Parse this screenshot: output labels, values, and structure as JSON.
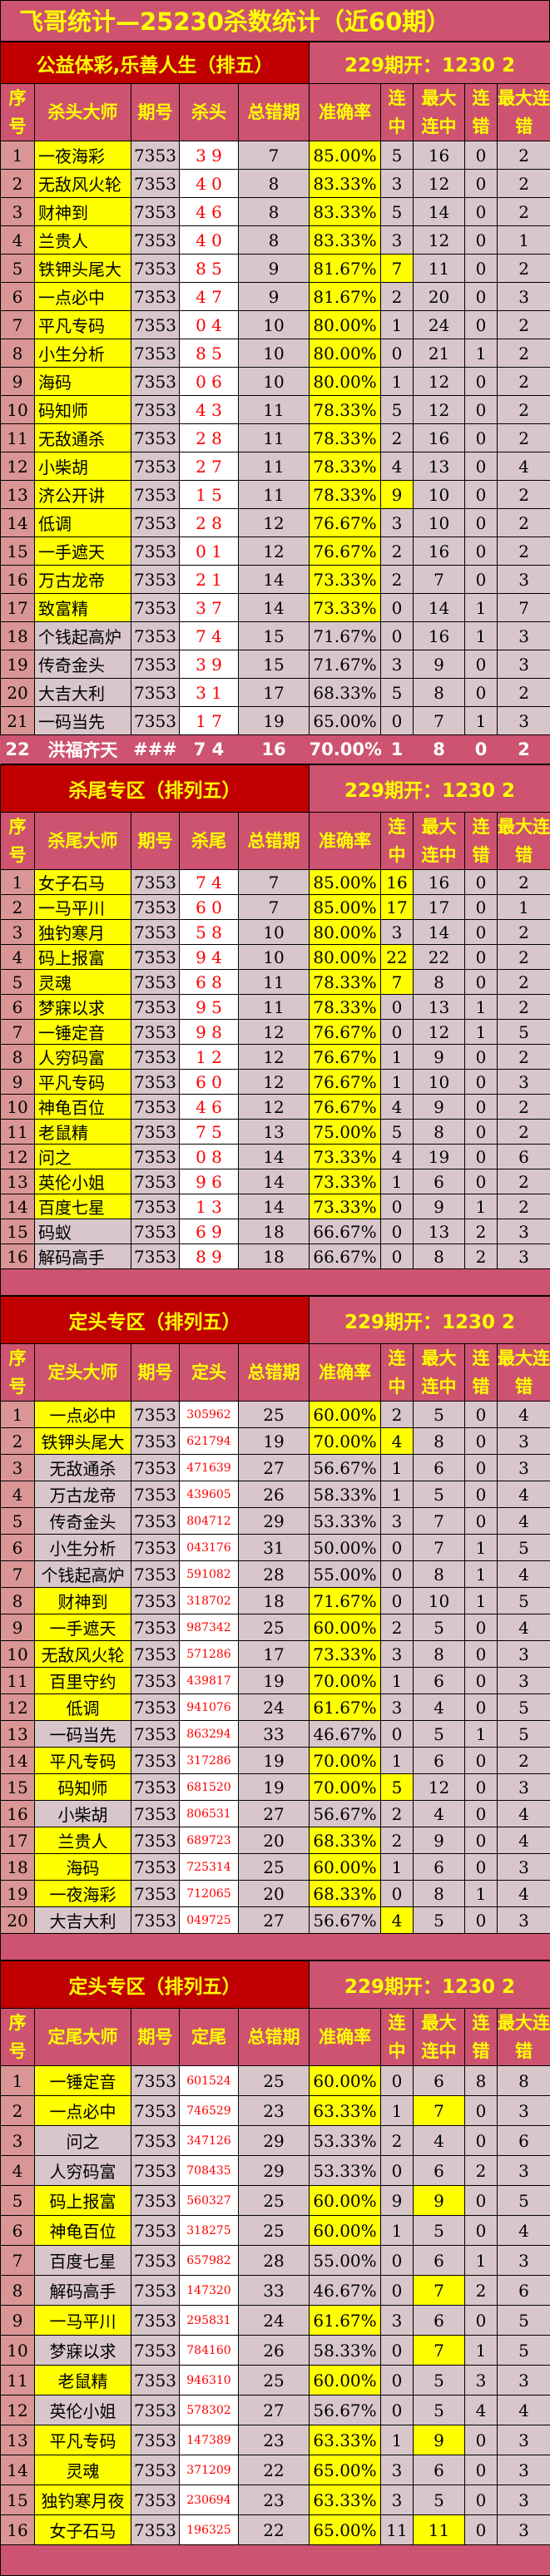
{
  "title": "飞哥统计—25230杀数统计（近60期）",
  "colors": {
    "header_pink": "#cd5370",
    "section_red": "#c00000",
    "highlight_yellow": "#ffff00",
    "cell_grey": "#d8c6cb",
    "number_col": "#da9694",
    "code_red": "#ff0000"
  },
  "sections": [
    {
      "header_left": "公益体彩,乐善人生（排五）",
      "header_right": "229期开：1230 2",
      "columns": [
        "序号",
        "杀头大师",
        "期号",
        "杀头",
        "总错期",
        "准确率",
        "连中",
        "最大连中",
        "连错",
        "最大连错"
      ],
      "highlight_name_rate": [
        1,
        2,
        3,
        4,
        5,
        6,
        7,
        8,
        9,
        10,
        11,
        12,
        13,
        14,
        15,
        16,
        17
      ],
      "highlight_streak": [
        5,
        13
      ],
      "highlight_max_streak": [],
      "rows": [
        [
          "1",
          "一夜海彩",
          "7353",
          "3 9",
          "7",
          "85.00%",
          "5",
          "16",
          "0",
          "2"
        ],
        [
          "2",
          "无敌风火轮",
          "7353",
          "4 0",
          "8",
          "83.33%",
          "3",
          "12",
          "0",
          "2"
        ],
        [
          "3",
          "财神到",
          "7353",
          "4 6",
          "8",
          "83.33%",
          "5",
          "14",
          "0",
          "2"
        ],
        [
          "4",
          "兰贵人",
          "7353",
          "4 0",
          "8",
          "83.33%",
          "3",
          "12",
          "0",
          "1"
        ],
        [
          "5",
          "铁钾头尾大",
          "7353",
          "8 5",
          "9",
          "81.67%",
          "7",
          "11",
          "0",
          "2"
        ],
        [
          "6",
          "一点必中",
          "7353",
          "4 7",
          "9",
          "81.67%",
          "2",
          "20",
          "0",
          "3"
        ],
        [
          "7",
          "平凡专码",
          "7353",
          "0 4",
          "10",
          "80.00%",
          "1",
          "24",
          "0",
          "2"
        ],
        [
          "8",
          "小生分析",
          "7353",
          "8 5",
          "10",
          "80.00%",
          "0",
          "21",
          "1",
          "2"
        ],
        [
          "9",
          "海码",
          "7353",
          "0 6",
          "10",
          "80.00%",
          "1",
          "12",
          "0",
          "2"
        ],
        [
          "10",
          "码知师",
          "7353",
          "4 3",
          "11",
          "78.33%",
          "5",
          "12",
          "0",
          "2"
        ],
        [
          "11",
          "无敌通杀",
          "7353",
          "2 8",
          "11",
          "78.33%",
          "2",
          "16",
          "0",
          "2"
        ],
        [
          "12",
          "小柴胡",
          "7353",
          "2 7",
          "11",
          "78.33%",
          "4",
          "13",
          "0",
          "4"
        ],
        [
          "13",
          "济公开讲",
          "7353",
          "1 5",
          "11",
          "78.33%",
          "9",
          "10",
          "0",
          "2"
        ],
        [
          "14",
          "低调",
          "7353",
          "2 8",
          "12",
          "76.67%",
          "3",
          "10",
          "0",
          "2"
        ],
        [
          "15",
          "一手遮天",
          "7353",
          "0 1",
          "12",
          "76.67%",
          "2",
          "16",
          "0",
          "2"
        ],
        [
          "16",
          "万古龙帝",
          "7353",
          "2 1",
          "14",
          "73.33%",
          "2",
          "7",
          "0",
          "3"
        ],
        [
          "17",
          "致富精",
          "7353",
          "3 7",
          "14",
          "73.33%",
          "0",
          "14",
          "1",
          "7"
        ],
        [
          "18",
          "个钱起高炉",
          "7353",
          "7 4",
          "15",
          "71.67%",
          "0",
          "16",
          "1",
          "3"
        ],
        [
          "19",
          "传奇金头",
          "7353",
          "3 9",
          "15",
          "71.67%",
          "3",
          "9",
          "0",
          "3"
        ],
        [
          "20",
          "大吉大利",
          "7353",
          "3 1",
          "17",
          "68.33%",
          "5",
          "8",
          "0",
          "2"
        ],
        [
          "21",
          "一码当先",
          "7353",
          "1 7",
          "19",
          "65.00%",
          "0",
          "7",
          "1",
          "3"
        ]
      ],
      "footer_row": [
        "22",
        "洪福齐天",
        "###",
        "7 4",
        "16",
        "70.00%",
        "1",
        "8",
        "0",
        "2"
      ]
    },
    {
      "header_left": "杀尾专区（排列五）",
      "header_right": "229期开：1230 2",
      "columns": [
        "序号",
        "杀尾大师",
        "期号",
        "杀尾",
        "总错期",
        "准确率",
        "连中",
        "最大连中",
        "连错",
        "最大连错"
      ],
      "highlight_name_rate": [
        1,
        2,
        3,
        4,
        5,
        6,
        7,
        8,
        9,
        10,
        11,
        12,
        13,
        14
      ],
      "highlight_streak": [
        1,
        2,
        4,
        5
      ],
      "highlight_max_streak": [],
      "rows": [
        [
          "1",
          "女子石马",
          "7353",
          "7 4",
          "7",
          "85.00%",
          "16",
          "16",
          "0",
          "2"
        ],
        [
          "2",
          "一马平川",
          "7353",
          "6 0",
          "7",
          "85.00%",
          "17",
          "17",
          "0",
          "1"
        ],
        [
          "3",
          "独钓寒月",
          "7353",
          "5 8",
          "10",
          "80.00%",
          "3",
          "14",
          "0",
          "2"
        ],
        [
          "4",
          "码上报富",
          "7353",
          "9 4",
          "10",
          "80.00%",
          "22",
          "22",
          "0",
          "2"
        ],
        [
          "5",
          "灵魂",
          "7353",
          "6 8",
          "11",
          "78.33%",
          "7",
          "8",
          "0",
          "2"
        ],
        [
          "6",
          "  梦寐以求",
          "7353",
          "9 5",
          "11",
          "78.33%",
          "0",
          "13",
          "1",
          "2"
        ],
        [
          "7",
          "  一锤定音",
          "7353",
          "9 8",
          "12",
          "76.67%",
          "0",
          "12",
          "1",
          "5"
        ],
        [
          "8",
          "人穷码富",
          "7353",
          "1 2",
          "12",
          "76.67%",
          "1",
          "9",
          "0",
          "2"
        ],
        [
          "9",
          "平凡专码",
          "7353",
          "6 0",
          "12",
          "76.67%",
          "1",
          "10",
          "0",
          "3"
        ],
        [
          "10",
          "神龟百位",
          "7353",
          "4 6",
          "12",
          "76.67%",
          "4",
          "9",
          "0",
          "2"
        ],
        [
          "11",
          "老鼠精",
          "7353",
          "7 5",
          "13",
          "75.00%",
          "5",
          "8",
          "0",
          "2"
        ],
        [
          "12",
          "问之",
          "7353",
          "0 8",
          "14",
          "73.33%",
          "4",
          "19",
          "0",
          "6"
        ],
        [
          "13",
          "英伦小姐",
          "7353",
          "9 6",
          "14",
          "73.33%",
          "1",
          "6",
          "0",
          "2"
        ],
        [
          "14",
          "百度七星",
          "7353",
          "1 3",
          "14",
          "73.33%",
          "0",
          "9",
          "1",
          "2"
        ],
        [
          "15",
          "码蚁",
          "7353",
          "6 9",
          "18",
          "66.67%",
          "0",
          "13",
          "2",
          "3"
        ],
        [
          "16",
          "解码高手",
          "7353",
          "8 9",
          "18",
          "66.67%",
          "0",
          "8",
          "2",
          "3"
        ]
      ]
    },
    {
      "header_left": "定头专区（排列五）",
      "header_right": "229期开：1230 2",
      "columns": [
        "序号",
        "定头大师",
        "期号",
        "定头",
        "总错期",
        "准确率",
        "连中",
        "最大连中",
        "连错",
        "最大连错"
      ],
      "highlight_name_rate": [
        1,
        2,
        8,
        9,
        10,
        11,
        12,
        14,
        15,
        17,
        18,
        19
      ],
      "highlight_streak": [
        2,
        15,
        20
      ],
      "highlight_max_streak": [],
      "rows": [
        [
          "1",
          "一点必中",
          "7353",
          "305962",
          "25",
          "60.00%",
          "2",
          "5",
          "0",
          "4"
        ],
        [
          "2",
          "铁钾头尾大",
          "7353",
          "621794",
          "19",
          "70.00%",
          "4",
          "8",
          "0",
          "3"
        ],
        [
          "3",
          "无敌通杀",
          "7353",
          "471639",
          "27",
          "56.67%",
          "1",
          "6",
          "0",
          "3"
        ],
        [
          "4",
          "万古龙帝",
          "7353",
          "439605",
          "26",
          "58.33%",
          "1",
          "5",
          "0",
          "4"
        ],
        [
          "5",
          "传奇金头",
          "7353",
          "804712",
          "29",
          "53.33%",
          "3",
          "7",
          "0",
          "4"
        ],
        [
          "6",
          "小生分析",
          "7353",
          "043176",
          "31",
          "50.00%",
          "0",
          "7",
          "1",
          "5"
        ],
        [
          "7",
          "个钱起高炉",
          "7353",
          "591082",
          "28",
          "55.00%",
          "0",
          "8",
          "1",
          "4"
        ],
        [
          "8",
          "财神到",
          "7353",
          "318702",
          "18",
          "71.67%",
          "0",
          "10",
          "1",
          "5"
        ],
        [
          "9",
          "一手遮天",
          "7353",
          "987342",
          "25",
          "60.00%",
          "2",
          "5",
          "0",
          "4"
        ],
        [
          "10",
          "无敌风火轮",
          "7353",
          "571286",
          "17",
          "73.33%",
          "3",
          "8",
          "0",
          "3"
        ],
        [
          "11",
          "百里守约",
          "7353",
          "439817",
          "19",
          "70.00%",
          "1",
          "6",
          "0",
          "3"
        ],
        [
          "12",
          "低调",
          "7353",
          "941076",
          "24",
          "61.67%",
          "3",
          "4",
          "0",
          "5"
        ],
        [
          "13",
          "一码当先",
          "7353",
          "863294",
          "33",
          "46.67%",
          "0",
          "5",
          "1",
          "5"
        ],
        [
          "14",
          "平凡专码",
          "7353",
          "317286",
          "19",
          "70.00%",
          "1",
          "6",
          "0",
          "2"
        ],
        [
          "15",
          "码知师",
          "7353",
          "681520",
          "19",
          "70.00%",
          "5",
          "12",
          "0",
          "3"
        ],
        [
          "16",
          "小柴胡",
          "7353",
          "806531",
          "27",
          "56.67%",
          "2",
          "4",
          "0",
          "4"
        ],
        [
          "17",
          "兰贵人",
          "7353",
          "689723",
          "20",
          "68.33%",
          "2",
          "9",
          "0",
          "4"
        ],
        [
          "18",
          "海码",
          "7353",
          "725314",
          "25",
          "60.00%",
          "1",
          "6",
          "0",
          "3"
        ],
        [
          "19",
          "一夜海彩",
          "7353",
          "712065",
          "20",
          "68.33%",
          "0",
          "8",
          "1",
          "4"
        ],
        [
          "20",
          "大吉大利",
          "7353",
          "049725",
          "27",
          "56.67%",
          "4",
          "5",
          "0",
          "3"
        ]
      ]
    },
    {
      "header_left": "定头专区（排列五）",
      "header_right": "229期开：1230 2",
      "columns": [
        "序号",
        "定尾大师",
        "期号",
        "定尾",
        "总错期",
        "准确率",
        "连中",
        "最大连中",
        "连错",
        "最大连错"
      ],
      "highlight_name_rate": [
        1,
        2,
        5,
        6,
        9,
        11,
        13,
        14,
        15,
        16
      ],
      "highlight_streak": [],
      "highlight_max_streak": [
        2,
        5,
        8,
        10,
        13,
        16
      ],
      "rows": [
        [
          "1",
          "一锤定音",
          "7353",
          "601524",
          "25",
          "60.00%",
          "0",
          "6",
          "8",
          "8"
        ],
        [
          "2",
          "一点必中",
          "7353",
          "746529",
          "23",
          "63.33%",
          "1",
          "7",
          "0",
          "3"
        ],
        [
          "3",
          "问之",
          "7353",
          "347126",
          "29",
          "53.33%",
          "2",
          "4",
          "0",
          "6"
        ],
        [
          "4",
          "人穷码富",
          "7353",
          "708435",
          "29",
          "53.33%",
          "0",
          "6",
          "2",
          "3"
        ],
        [
          "5",
          "码上报富",
          "7353",
          "560327",
          "25",
          "60.00%",
          "9",
          "9",
          "0",
          "5"
        ],
        [
          "6",
          "神龟百位",
          "7353",
          "318275",
          "25",
          "60.00%",
          "1",
          "5",
          "0",
          "4"
        ],
        [
          "7",
          "百度七星",
          "7353",
          "657982",
          "28",
          "55.00%",
          "0",
          "6",
          "1",
          "3"
        ],
        [
          "8",
          "解码高手",
          "7353",
          "147320",
          "33",
          "46.67%",
          "0",
          "7",
          "2",
          "6"
        ],
        [
          "9",
          "一马平川",
          "7353",
          "295831",
          "24",
          "61.67%",
          "3",
          "6",
          "0",
          "5"
        ],
        [
          "10",
          "梦寐以求",
          "7353",
          "784160",
          "26",
          "58.33%",
          "0",
          "7",
          "1",
          "5"
        ],
        [
          "11",
          "老鼠精",
          "7353",
          "946310",
          "25",
          "60.00%",
          "0",
          "5",
          "3",
          "3"
        ],
        [
          "12",
          "英伦小姐",
          "7353",
          "578302",
          "27",
          "56.67%",
          "0",
          "5",
          "4",
          "4"
        ],
        [
          "13",
          "平凡专码",
          "7353",
          "147389",
          "23",
          "63.33%",
          "1",
          "9",
          "0",
          "3"
        ],
        [
          "14",
          "灵魂",
          "7353",
          "371209",
          "22",
          "65.00%",
          "3",
          "6",
          "0",
          "3"
        ],
        [
          "15",
          "独钓寒月夜",
          "7353",
          "230694",
          "23",
          "63.33%",
          "3",
          "5",
          "0",
          "3"
        ],
        [
          "16",
          "女子石马",
          "7353",
          "196325",
          "22",
          "65.00%",
          "11",
          "11",
          "0",
          "3"
        ]
      ]
    }
  ]
}
